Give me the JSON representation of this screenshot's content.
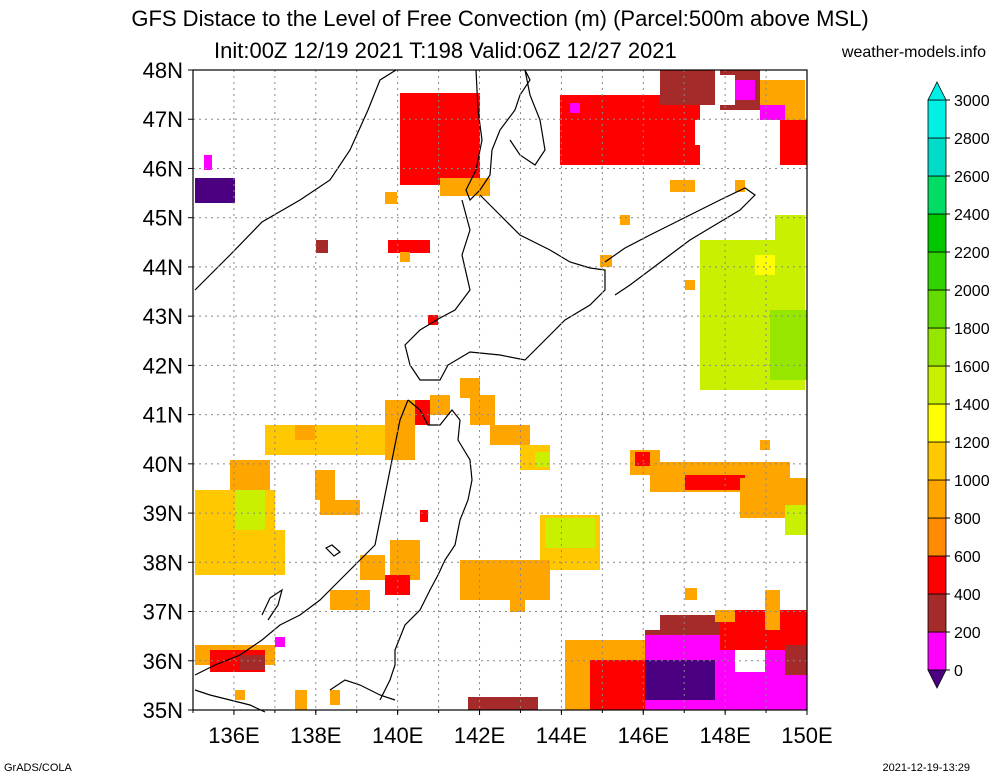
{
  "header": {
    "title_line1": "GFS Distace to the Level of Free Convection (m) (Parcel:500m above MSL)",
    "title_line2": "Init:00Z 12/19 2021 T:198 Valid:06Z 12/27 2021",
    "site": "weather-models.info"
  },
  "footer": {
    "left": "GrADS/COLA",
    "right": "2021-12-19-13:29"
  },
  "map": {
    "lat_labels": [
      "48N",
      "47N",
      "46N",
      "45N",
      "44N",
      "43N",
      "42N",
      "41N",
      "40N",
      "39N",
      "38N",
      "37N",
      "36N",
      "35N"
    ],
    "lon_labels": [
      "136E",
      "138E",
      "140E",
      "142E",
      "144E",
      "146E",
      "148E",
      "150E"
    ],
    "lat_range": [
      35,
      48
    ],
    "lon_range": [
      135,
      150
    ],
    "grid": true
  },
  "colorbar": {
    "levels": [
      "0",
      "200",
      "400",
      "600",
      "800",
      "1000",
      "1200",
      "1400",
      "1600",
      "1800",
      "2000",
      "2200",
      "2400",
      "2600",
      "2800",
      "3000"
    ],
    "colors": [
      "#4b0082",
      "#ff00ff",
      "#a52a2a",
      "#ff0000",
      "#ff8c00",
      "#ffa500",
      "#ffc800",
      "#ffff00",
      "#c8f000",
      "#96e600",
      "#64dc00",
      "#32d200",
      "#00c800",
      "#00dc64",
      "#00dcc8",
      "#00f0e6"
    ],
    "under_color": "#4b0082",
    "over_color": "#00f0e6"
  },
  "field_colors": {
    "maroon": "#a52a2a",
    "red": "#ff0000",
    "orange": "#ff8c00",
    "gold": "#ffa500",
    "amber": "#ffc800",
    "yellow": "#ffff00",
    "lime": "#c8f000",
    "green": "#96e600",
    "magenta": "#ff00ff",
    "indigo": "#4b0082"
  }
}
